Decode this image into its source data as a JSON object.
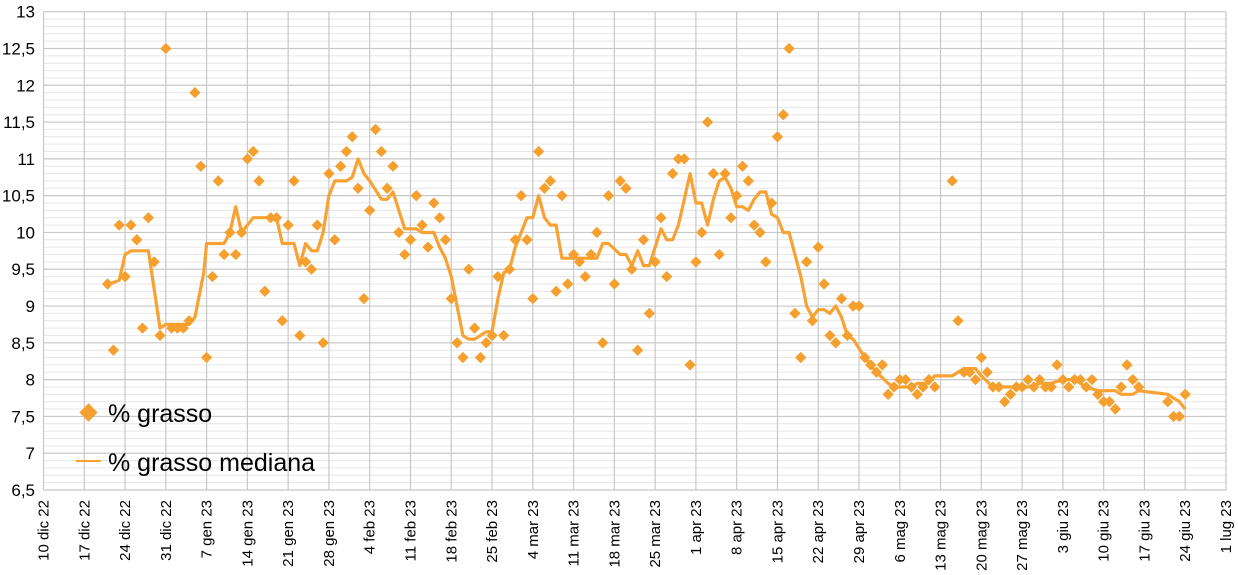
{
  "chart_data": {
    "type": "scatter",
    "title": "",
    "xlabel": "",
    "ylabel": "",
    "x_unit": "days since 10 dic 22",
    "xlim": [
      0,
      203
    ],
    "ylim": [
      6.5,
      13
    ],
    "y_major_step": 0.5,
    "y_minor_step": 0.1,
    "x_tick_step_days": 7,
    "grid": true,
    "legend_position": "bottom-left",
    "colors": {
      "points": "#F5A02E",
      "line": "#F7A233",
      "grid": "#C8C8C8",
      "minor_grid": "#E6E6E6"
    },
    "y_tick_labels": [
      "6,5",
      "7",
      "7,5",
      "8",
      "8,5",
      "9",
      "9,5",
      "10",
      "10,5",
      "11",
      "11,5",
      "12",
      "12,5",
      "13"
    ],
    "x_tick_labels": [
      "10 dic 22",
      "17 dic 22",
      "24 dic 22",
      "31 dic 22",
      "7 gen 23",
      "14 gen 23",
      "21 gen 23",
      "28 gen 23",
      "4 feb 23",
      "11 feb 23",
      "18 feb 23",
      "25 feb 23",
      "4 mar 23",
      "11 mar 23",
      "18 mar 23",
      "25 mar 23",
      "1 apr 23",
      "8 apr 23",
      "15 apr 23",
      "22 apr 23",
      "29 apr 23",
      "6 mag 23",
      "13 mag 23",
      "20 mag 23",
      "27 mag 23",
      "3 giu 23",
      "10 giu 23",
      "17 giu 23",
      "24 giu 23",
      "1 lug 23"
    ],
    "series": [
      {
        "name": "% grasso",
        "kind": "scatter",
        "points": [
          [
            11,
            9.3
          ],
          [
            12,
            8.4
          ],
          [
            13,
            10.1
          ],
          [
            14,
            9.4
          ],
          [
            15,
            10.1
          ],
          [
            16,
            9.9
          ],
          [
            17,
            8.7
          ],
          [
            18,
            10.2
          ],
          [
            19,
            9.6
          ],
          [
            20,
            8.6
          ],
          [
            21,
            12.5
          ],
          [
            22,
            8.7
          ],
          [
            23,
            8.7
          ],
          [
            24,
            8.7
          ],
          [
            25,
            8.8
          ],
          [
            26,
            11.9
          ],
          [
            27,
            10.9
          ],
          [
            28,
            8.3
          ],
          [
            29,
            9.4
          ],
          [
            30,
            10.7
          ],
          [
            31,
            9.7
          ],
          [
            32,
            10.0
          ],
          [
            33,
            9.7
          ],
          [
            34,
            10.0
          ],
          [
            35,
            11.0
          ],
          [
            36,
            11.1
          ],
          [
            37,
            10.7
          ],
          [
            38,
            9.2
          ],
          [
            39,
            10.2
          ],
          [
            40,
            10.2
          ],
          [
            41,
            8.8
          ],
          [
            42,
            10.1
          ],
          [
            43,
            10.7
          ],
          [
            44,
            8.6
          ],
          [
            45,
            9.6
          ],
          [
            46,
            9.5
          ],
          [
            47,
            10.1
          ],
          [
            48,
            8.5
          ],
          [
            49,
            10.8
          ],
          [
            50,
            9.9
          ],
          [
            51,
            10.9
          ],
          [
            52,
            11.1
          ],
          [
            53,
            11.3
          ],
          [
            54,
            10.6
          ],
          [
            55,
            9.1
          ],
          [
            56,
            10.3
          ],
          [
            57,
            11.4
          ],
          [
            58,
            11.1
          ],
          [
            59,
            10.6
          ],
          [
            60,
            10.9
          ],
          [
            61,
            10.0
          ],
          [
            62,
            9.7
          ],
          [
            63,
            9.9
          ],
          [
            64,
            10.5
          ],
          [
            65,
            10.1
          ],
          [
            66,
            9.8
          ],
          [
            67,
            10.4
          ],
          [
            68,
            10.2
          ],
          [
            69,
            9.9
          ],
          [
            70,
            9.1
          ],
          [
            71,
            8.5
          ],
          [
            72,
            8.3
          ],
          [
            73,
            9.5
          ],
          [
            74,
            8.7
          ],
          [
            75,
            8.3
          ],
          [
            76,
            8.5
          ],
          [
            77,
            8.6
          ],
          [
            78,
            9.4
          ],
          [
            79,
            8.6
          ],
          [
            80,
            9.5
          ],
          [
            81,
            9.9
          ],
          [
            82,
            10.5
          ],
          [
            83,
            9.9
          ],
          [
            84,
            9.1
          ],
          [
            85,
            11.1
          ],
          [
            86,
            10.6
          ],
          [
            87,
            10.7
          ],
          [
            88,
            9.2
          ],
          [
            89,
            10.5
          ],
          [
            90,
            9.3
          ],
          [
            91,
            9.7
          ],
          [
            92,
            9.6
          ],
          [
            93,
            9.4
          ],
          [
            94,
            9.7
          ],
          [
            95,
            10.0
          ],
          [
            96,
            8.5
          ],
          [
            97,
            10.5
          ],
          [
            98,
            9.3
          ],
          [
            99,
            10.7
          ],
          [
            100,
            10.6
          ],
          [
            101,
            9.5
          ],
          [
            102,
            8.4
          ],
          [
            103,
            9.9
          ],
          [
            104,
            8.9
          ],
          [
            105,
            9.6
          ],
          [
            106,
            10.2
          ],
          [
            107,
            9.4
          ],
          [
            108,
            10.8
          ],
          [
            109,
            11.0
          ],
          [
            110,
            11.0
          ],
          [
            111,
            8.2
          ],
          [
            112,
            9.6
          ],
          [
            113,
            10.0
          ],
          [
            114,
            11.5
          ],
          [
            115,
            10.8
          ],
          [
            116,
            9.7
          ],
          [
            117,
            10.8
          ],
          [
            118,
            10.2
          ],
          [
            119,
            10.5
          ],
          [
            120,
            10.9
          ],
          [
            121,
            10.7
          ],
          [
            122,
            10.1
          ],
          [
            123,
            10.0
          ],
          [
            124,
            9.6
          ],
          [
            125,
            10.4
          ],
          [
            126,
            11.3
          ],
          [
            127,
            11.6
          ],
          [
            128,
            12.5
          ],
          [
            129,
            8.9
          ],
          [
            130,
            8.3
          ],
          [
            131,
            9.6
          ],
          [
            132,
            8.8
          ],
          [
            133,
            9.8
          ],
          [
            134,
            9.3
          ],
          [
            135,
            8.6
          ],
          [
            136,
            8.5
          ],
          [
            137,
            9.1
          ],
          [
            138,
            8.6
          ],
          [
            139,
            9.0
          ],
          [
            140,
            9.0
          ],
          [
            141,
            8.3
          ],
          [
            142,
            8.2
          ],
          [
            143,
            8.1
          ],
          [
            144,
            8.2
          ],
          [
            145,
            7.8
          ],
          [
            146,
            7.9
          ],
          [
            147,
            8.0
          ],
          [
            148,
            8.0
          ],
          [
            149,
            7.9
          ],
          [
            150,
            7.8
          ],
          [
            151,
            7.9
          ],
          [
            152,
            8.0
          ],
          [
            153,
            7.9
          ],
          [
            156,
            10.7
          ],
          [
            157,
            8.8
          ],
          [
            158,
            8.1
          ],
          [
            159,
            8.1
          ],
          [
            160,
            8.0
          ],
          [
            161,
            8.3
          ],
          [
            162,
            8.1
          ],
          [
            163,
            7.9
          ],
          [
            164,
            7.9
          ],
          [
            165,
            7.7
          ],
          [
            166,
            7.8
          ],
          [
            167,
            7.9
          ],
          [
            168,
            7.9
          ],
          [
            169,
            8.0
          ],
          [
            170,
            7.9
          ],
          [
            171,
            8.0
          ],
          [
            172,
            7.9
          ],
          [
            173,
            7.9
          ],
          [
            174,
            8.2
          ],
          [
            175,
            8.0
          ],
          [
            176,
            7.9
          ],
          [
            177,
            8.0
          ],
          [
            178,
            8.0
          ],
          [
            179,
            7.9
          ],
          [
            180,
            8.0
          ],
          [
            181,
            7.8
          ],
          [
            182,
            7.7
          ],
          [
            183,
            7.7
          ],
          [
            184,
            7.6
          ],
          [
            185,
            7.9
          ],
          [
            186,
            8.2
          ],
          [
            187,
            8.0
          ],
          [
            188,
            7.9
          ],
          [
            193,
            7.7
          ],
          [
            194,
            7.5
          ],
          [
            195,
            7.5
          ],
          [
            196,
            7.8
          ]
        ]
      },
      {
        "name": "% grasso mediana",
        "kind": "line",
        "points": [
          [
            11,
            9.29
          ],
          [
            13,
            9.35
          ],
          [
            14,
            9.7
          ],
          [
            15,
            9.75
          ],
          [
            18,
            9.75
          ],
          [
            20,
            8.7
          ],
          [
            21,
            8.75
          ],
          [
            25,
            8.75
          ],
          [
            26,
            8.85
          ],
          [
            27.5,
            9.45
          ],
          [
            28,
            9.85
          ],
          [
            31,
            9.85
          ],
          [
            32,
            10.0
          ],
          [
            33,
            10.35
          ],
          [
            34,
            10.0
          ],
          [
            36,
            10.2
          ],
          [
            40,
            10.2
          ],
          [
            41,
            9.85
          ],
          [
            43,
            9.85
          ],
          [
            44,
            9.55
          ],
          [
            45,
            9.85
          ],
          [
            46,
            9.75
          ],
          [
            47,
            9.75
          ],
          [
            48,
            10.0
          ],
          [
            49,
            10.5
          ],
          [
            50,
            10.7
          ],
          [
            52,
            10.7
          ],
          [
            53,
            10.75
          ],
          [
            54,
            11.0
          ],
          [
            55,
            10.8
          ],
          [
            56,
            10.7
          ],
          [
            58,
            10.45
          ],
          [
            59,
            10.45
          ],
          [
            60,
            10.55
          ],
          [
            62,
            10.05
          ],
          [
            64,
            10.05
          ],
          [
            65,
            10.0
          ],
          [
            67,
            10.0
          ],
          [
            68,
            9.8
          ],
          [
            69,
            9.65
          ],
          [
            70,
            9.4
          ],
          [
            71,
            9.0
          ],
          [
            72,
            8.6
          ],
          [
            73,
            8.55
          ],
          [
            74,
            8.55
          ],
          [
            75,
            8.6
          ],
          [
            76,
            8.65
          ],
          [
            77,
            8.65
          ],
          [
            78,
            9.1
          ],
          [
            79,
            9.45
          ],
          [
            80,
            9.5
          ],
          [
            81,
            9.8
          ],
          [
            82,
            10.0
          ],
          [
            83,
            10.2
          ],
          [
            84,
            10.2
          ],
          [
            85,
            10.5
          ],
          [
            86,
            10.2
          ],
          [
            87,
            10.1
          ],
          [
            88,
            10.1
          ],
          [
            89,
            9.65
          ],
          [
            95,
            9.65
          ],
          [
            96,
            9.85
          ],
          [
            97,
            9.85
          ],
          [
            99,
            9.7
          ],
          [
            100,
            9.7
          ],
          [
            101,
            9.55
          ],
          [
            102,
            9.75
          ],
          [
            103,
            9.55
          ],
          [
            104,
            9.55
          ],
          [
            106,
            10.05
          ],
          [
            107,
            9.9
          ],
          [
            108,
            9.9
          ],
          [
            109,
            10.1
          ],
          [
            110,
            10.45
          ],
          [
            111,
            10.8
          ],
          [
            112,
            10.4
          ],
          [
            113,
            10.4
          ],
          [
            114,
            10.1
          ],
          [
            115,
            10.45
          ],
          [
            116,
            10.7
          ],
          [
            117,
            10.75
          ],
          [
            118,
            10.6
          ],
          [
            119,
            10.35
          ],
          [
            120,
            10.35
          ],
          [
            121,
            10.3
          ],
          [
            122,
            10.45
          ],
          [
            123,
            10.55
          ],
          [
            124,
            10.55
          ],
          [
            125,
            10.25
          ],
          [
            126,
            10.2
          ],
          [
            127,
            10.0
          ],
          [
            128,
            10.0
          ],
          [
            129,
            9.7
          ],
          [
            130,
            9.4
          ],
          [
            131,
            9.0
          ],
          [
            132,
            8.85
          ],
          [
            133,
            8.95
          ],
          [
            134,
            8.95
          ],
          [
            135,
            8.9
          ],
          [
            136,
            9.0
          ],
          [
            137,
            8.85
          ],
          [
            138,
            8.6
          ],
          [
            139,
            8.55
          ],
          [
            141,
            8.3
          ],
          [
            143,
            8.1
          ],
          [
            145,
            7.95
          ],
          [
            146,
            7.9
          ],
          [
            149,
            7.9
          ],
          [
            150,
            7.95
          ],
          [
            152,
            7.95
          ],
          [
            153,
            8.05
          ],
          [
            156,
            8.05
          ],
          [
            158,
            8.15
          ],
          [
            160,
            8.15
          ],
          [
            161,
            8.05
          ],
          [
            163,
            7.9
          ],
          [
            169,
            7.9
          ],
          [
            171,
            7.95
          ],
          [
            173,
            7.95
          ],
          [
            175,
            8.0
          ],
          [
            177,
            8.0
          ],
          [
            179,
            7.9
          ],
          [
            181,
            7.85
          ],
          [
            184,
            7.85
          ],
          [
            185,
            7.8
          ],
          [
            187,
            7.8
          ],
          [
            188,
            7.85
          ],
          [
            193,
            7.8
          ],
          [
            194,
            7.75
          ],
          [
            195,
            7.7
          ],
          [
            196,
            7.6
          ]
        ]
      }
    ],
    "legend": [
      "% grasso",
      "% grasso mediana"
    ]
  }
}
